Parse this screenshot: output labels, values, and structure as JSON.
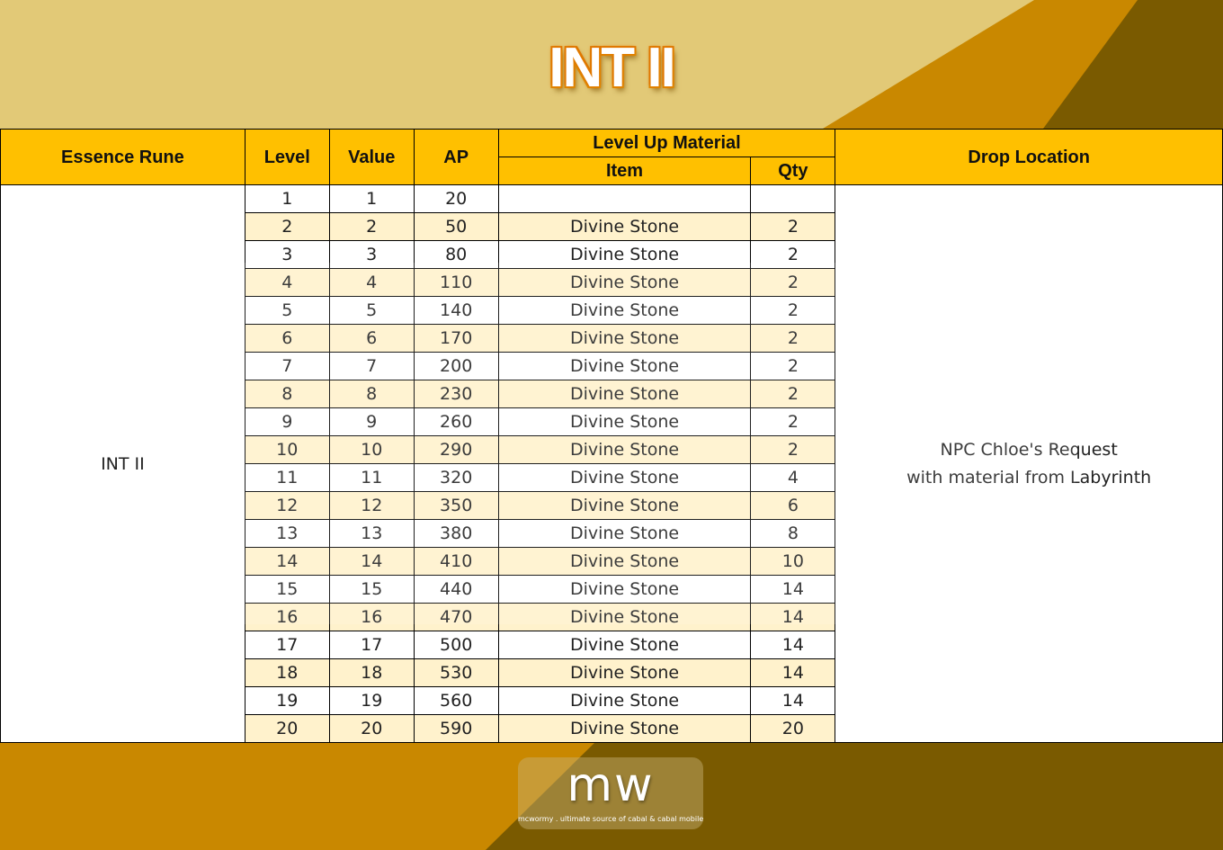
{
  "title": "INT II",
  "colors": {
    "background": "#e2c977",
    "accent_orange": "#c98800",
    "accent_dark": "#7a5a00",
    "header": "#ffc000",
    "alt_row": "#fff2cc"
  },
  "table": {
    "headers": {
      "essence_rune": "Essence Rune",
      "level": "Level",
      "value": "Value",
      "ap": "AP",
      "level_up_material": "Level Up Material",
      "item": "Item",
      "qty": "Qty",
      "drop_location": "Drop Location"
    },
    "essence_rune": "INT II",
    "drop_location_line1": "NPC Chloe's Request",
    "drop_location_line2": "with material from Labyrinth",
    "rows": [
      {
        "level": "1",
        "value": "1",
        "ap": "20",
        "item": "",
        "qty": ""
      },
      {
        "level": "2",
        "value": "2",
        "ap": "50",
        "item": "Divine Stone",
        "qty": "2"
      },
      {
        "level": "3",
        "value": "3",
        "ap": "80",
        "item": "Divine Stone",
        "qty": "2"
      },
      {
        "level": "4",
        "value": "4",
        "ap": "110",
        "item": "Divine Stone",
        "qty": "2"
      },
      {
        "level": "5",
        "value": "5",
        "ap": "140",
        "item": "Divine Stone",
        "qty": "2"
      },
      {
        "level": "6",
        "value": "6",
        "ap": "170",
        "item": "Divine Stone",
        "qty": "2"
      },
      {
        "level": "7",
        "value": "7",
        "ap": "200",
        "item": "Divine Stone",
        "qty": "2"
      },
      {
        "level": "8",
        "value": "8",
        "ap": "230",
        "item": "Divine Stone",
        "qty": "2"
      },
      {
        "level": "9",
        "value": "9",
        "ap": "260",
        "item": "Divine Stone",
        "qty": "2"
      },
      {
        "level": "10",
        "value": "10",
        "ap": "290",
        "item": "Divine Stone",
        "qty": "2"
      },
      {
        "level": "11",
        "value": "11",
        "ap": "320",
        "item": "Divine Stone",
        "qty": "4"
      },
      {
        "level": "12",
        "value": "12",
        "ap": "350",
        "item": "Divine Stone",
        "qty": "6"
      },
      {
        "level": "13",
        "value": "13",
        "ap": "380",
        "item": "Divine Stone",
        "qty": "8"
      },
      {
        "level": "14",
        "value": "14",
        "ap": "410",
        "item": "Divine Stone",
        "qty": "10"
      },
      {
        "level": "15",
        "value": "15",
        "ap": "440",
        "item": "Divine Stone",
        "qty": "14"
      },
      {
        "level": "16",
        "value": "16",
        "ap": "470",
        "item": "Divine Stone",
        "qty": "14"
      },
      {
        "level": "17",
        "value": "17",
        "ap": "500",
        "item": "Divine Stone",
        "qty": "14"
      },
      {
        "level": "18",
        "value": "18",
        "ap": "530",
        "item": "Divine Stone",
        "qty": "14"
      },
      {
        "level": "19",
        "value": "19",
        "ap": "560",
        "item": "Divine Stone",
        "qty": "14"
      },
      {
        "level": "20",
        "value": "20",
        "ap": "590",
        "item": "Divine Stone",
        "qty": "20"
      }
    ]
  },
  "watermark": {
    "logo": "mw",
    "tagline": "mcwormy . ultimate source of cabal & cabal mobile"
  }
}
